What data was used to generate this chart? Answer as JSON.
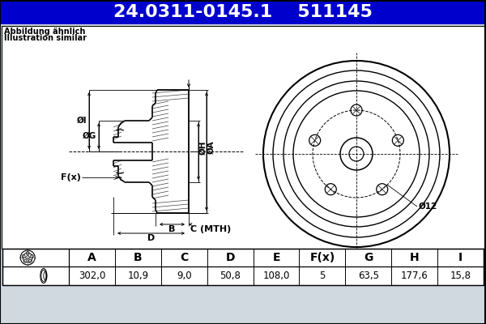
{
  "title_part1": "24.0311-0145.1",
  "title_part2": "511145",
  "title_bg": "#0000cc",
  "title_fg": "white",
  "subtitle_line1": "Abbildung ähnlich",
  "subtitle_line2": "Illustration similar",
  "table_headers": [
    "A",
    "B",
    "C",
    "D",
    "E",
    "F(x)",
    "G",
    "H",
    "I"
  ],
  "table_values": [
    "302,0",
    "10,9",
    "9,0",
    "50,8",
    "108,0",
    "5",
    "63,5",
    "177,6",
    "15,8"
  ],
  "bg_color": "#d0d8e0",
  "line_color": "black"
}
